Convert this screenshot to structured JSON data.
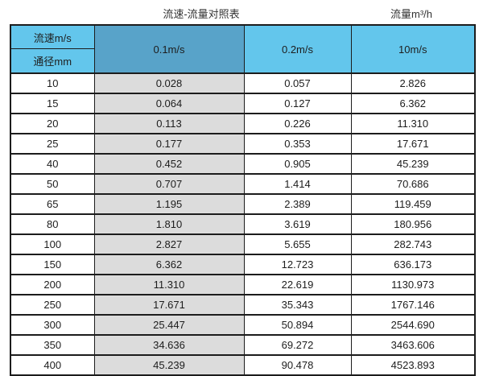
{
  "page": {
    "title": "流速-流量对照表",
    "unit_label": "流量m³/h"
  },
  "table": {
    "corner_top": "流速m/s",
    "corner_bottom": "通径mm",
    "columns": [
      "0.1m/s",
      "0.2m/s",
      "10m/s"
    ],
    "highlighted_column": "0.1m/s",
    "rows": [
      [
        "10",
        "0.028",
        "0.057",
        "2.826"
      ],
      [
        "15",
        "0.064",
        "0.127",
        "6.362"
      ],
      [
        "20",
        "0.113",
        "0.226",
        "11.310"
      ],
      [
        "25",
        "0.177",
        "0.353",
        "17.671"
      ],
      [
        "40",
        "0.452",
        "0.905",
        "45.239"
      ],
      [
        "50",
        "0.707",
        "1.414",
        "70.686"
      ],
      [
        "65",
        "1.195",
        "2.389",
        "119.459"
      ],
      [
        "80",
        "1.810",
        "3.619",
        "180.956"
      ],
      [
        "100",
        "2.827",
        "5.655",
        "282.743"
      ],
      [
        "150",
        "6.362",
        "12.723",
        "636.173"
      ],
      [
        "200",
        "11.310",
        "22.619",
        "1130.973"
      ],
      [
        "250",
        "17.671",
        "35.343",
        "1767.146"
      ],
      [
        "300",
        "25.447",
        "50.894",
        "2544.690"
      ],
      [
        "350",
        "34.636",
        "69.272",
        "3463.606"
      ],
      [
        "400",
        "45.239",
        "90.478",
        "4523.893"
      ]
    ]
  },
  "colors": {
    "header_blue": "#63c6ec",
    "header_blue_highlight": "#58a3c9",
    "highlight_column_gray": "#dcdcdc",
    "grid_border": "#1c1c1c",
    "text": "#1d1d1d",
    "background": "#ffffff"
  },
  "chart_data": {
    "type": "table",
    "title": "流速-流量对照表",
    "unit_label": "流量m³/h",
    "row_axis_label": "通径mm",
    "column_axis_label": "流速m/s",
    "columns": [
      "0.1m/s",
      "0.2m/s",
      "10m/s"
    ],
    "diameters_mm": [
      10,
      15,
      20,
      25,
      40,
      50,
      65,
      80,
      100,
      150,
      200,
      250,
      300,
      350,
      400
    ],
    "series": [
      {
        "name": "0.1m/s",
        "values": [
          0.028,
          0.064,
          0.113,
          0.177,
          0.452,
          0.707,
          1.195,
          1.81,
          2.827,
          6.362,
          11.31,
          17.671,
          25.447,
          34.636,
          45.239
        ]
      },
      {
        "name": "0.2m/s",
        "values": [
          0.057,
          0.127,
          0.226,
          0.353,
          0.905,
          1.414,
          2.389,
          3.619,
          5.655,
          12.723,
          22.619,
          35.343,
          50.894,
          69.272,
          90.478
        ]
      },
      {
        "name": "10m/s",
        "values": [
          2.826,
          6.362,
          11.31,
          17.671,
          45.239,
          70.686,
          119.459,
          180.956,
          282.743,
          636.173,
          1130.973,
          1767.146,
          2544.69,
          3463.606,
          4523.893
        ]
      }
    ]
  }
}
